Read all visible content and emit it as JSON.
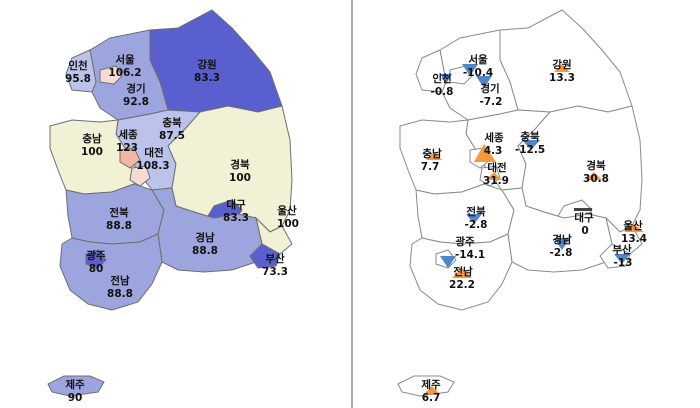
{
  "colors": {
    "dark": "#5a5fd0",
    "mid": "#9da5de",
    "light": "#bcc3ea",
    "cream": "#f1f1d6",
    "salmon": "#f2b7a2",
    "pale": "#f4dcd5",
    "increase": "#f59a3c",
    "decrease": "#4e86c8",
    "divider": "#555555"
  },
  "left_map": {
    "regions": [
      {
        "name": "서울",
        "value": "106.2"
      },
      {
        "name": "인천",
        "value": "95.8"
      },
      {
        "name": "경기",
        "value": "92.8"
      },
      {
        "name": "강원",
        "value": "83.3"
      },
      {
        "name": "충북",
        "value": "87.5"
      },
      {
        "name": "충남",
        "value": "100"
      },
      {
        "name": "세종",
        "value": "123"
      },
      {
        "name": "대전",
        "value": "108.3"
      },
      {
        "name": "경북",
        "value": "100"
      },
      {
        "name": "대구",
        "value": "83.3"
      },
      {
        "name": "울산",
        "value": "100"
      },
      {
        "name": "전북",
        "value": "88.8"
      },
      {
        "name": "광주",
        "value": "80"
      },
      {
        "name": "전남",
        "value": "88.8"
      },
      {
        "name": "경남",
        "value": "88.8"
      },
      {
        "name": "부산",
        "value": "73.3"
      },
      {
        "name": "제주",
        "value": "90"
      }
    ]
  },
  "right_map": {
    "regions": [
      {
        "name": "서울",
        "value": "-10.4",
        "direction": "down"
      },
      {
        "name": "인천",
        "value": "-0.8",
        "direction": "down"
      },
      {
        "name": "경기",
        "value": "-7.2",
        "direction": "down"
      },
      {
        "name": "강원",
        "value": "13.3",
        "direction": "up"
      },
      {
        "name": "충북",
        "value": "-12.5",
        "direction": "down"
      },
      {
        "name": "충남",
        "value": "7.7",
        "direction": "up"
      },
      {
        "name": "세종",
        "value": "4.3",
        "direction": "up"
      },
      {
        "name": "대전",
        "value": "31.9",
        "direction": "up"
      },
      {
        "name": "경북",
        "value": "30.8",
        "direction": "up"
      },
      {
        "name": "대구",
        "value": "0",
        "direction": "flat"
      },
      {
        "name": "울산",
        "value": "13.4",
        "direction": "up"
      },
      {
        "name": "전북",
        "value": "-2.8",
        "direction": "down"
      },
      {
        "name": "광주",
        "value": "-14.1",
        "direction": "down"
      },
      {
        "name": "전남",
        "value": "22.2",
        "direction": "up"
      },
      {
        "name": "경남",
        "value": "-2.8",
        "direction": "down"
      },
      {
        "name": "부산",
        "value": "-13",
        "direction": "down"
      },
      {
        "name": "제주",
        "value": "6.7",
        "direction": "up"
      }
    ]
  }
}
